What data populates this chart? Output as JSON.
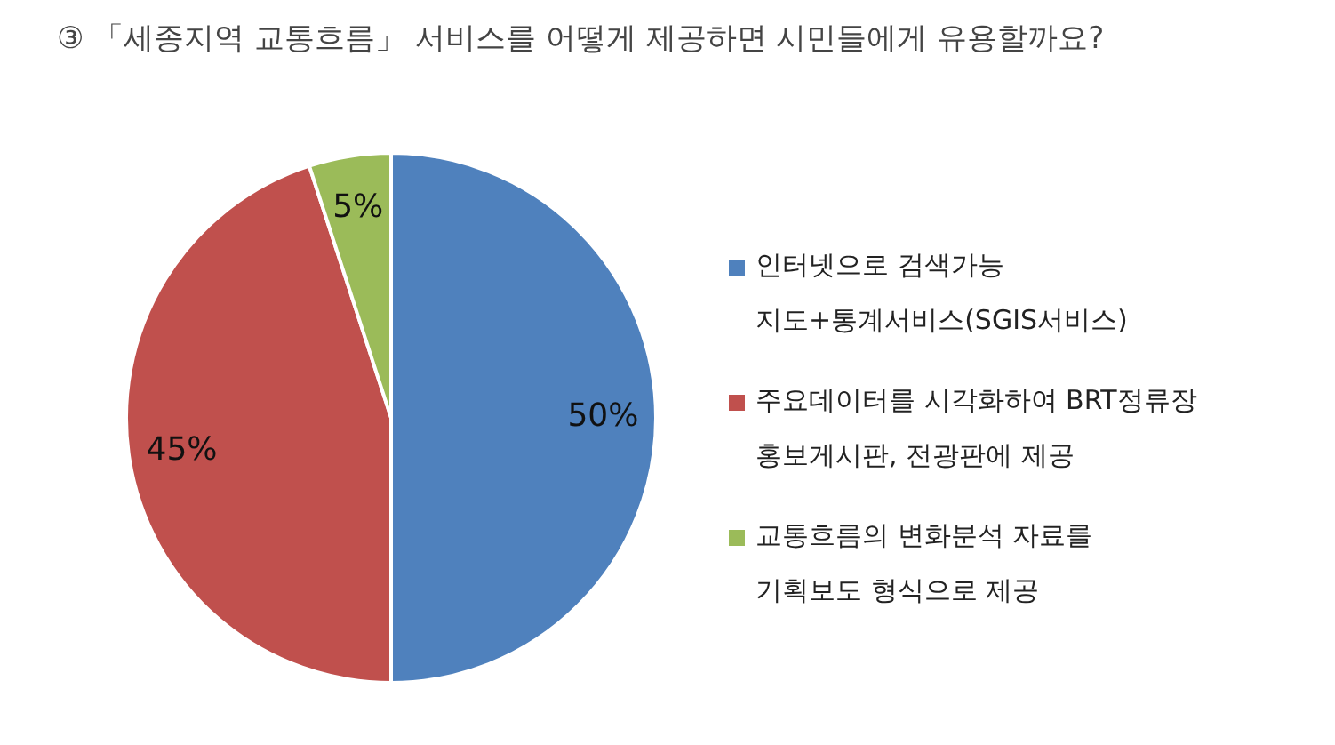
{
  "chart_data": {
    "type": "pie",
    "title": "③ 「세종지역 교통흐름」 서비스를 어떻게 제공하면 시민들에게 유용할까요?",
    "categories": [
      "인터넷으로 검색가능\n지도+통계서비스(SGIS서비스)",
      "주요데이터를 시각화하여 BRT정류장\n홍보게시판, 전광판에 제공",
      "교통흐름의 변화분석 자료를\n기획보도 형식으로 제공"
    ],
    "values": [
      50,
      45,
      5
    ],
    "colors": [
      "#4f81bd",
      "#c0504d",
      "#9bbb59"
    ],
    "value_labels": [
      "50%",
      "45%",
      "5%"
    ],
    "legend": "right"
  }
}
